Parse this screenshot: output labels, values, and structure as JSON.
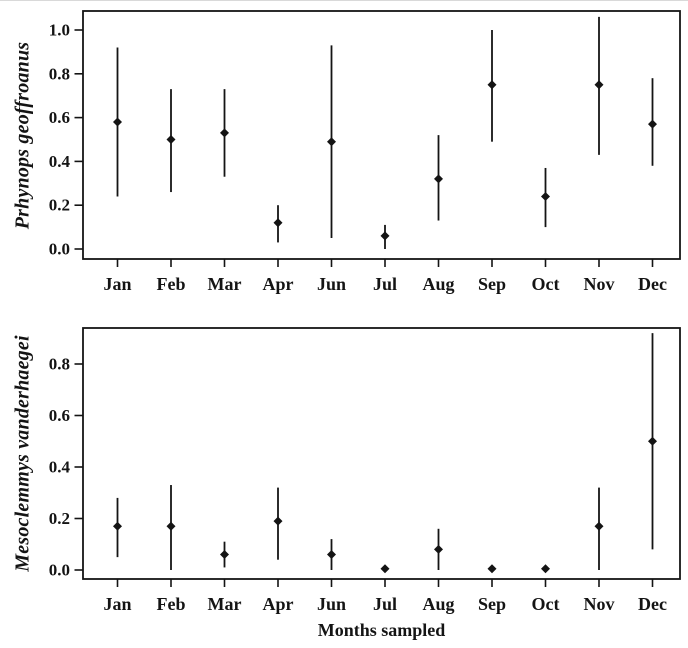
{
  "figure": {
    "background": "#ffffff",
    "ink_color": "#141414"
  },
  "chart_data": [
    {
      "type": "scatter",
      "subtype": "point-estimate-with-error-bars",
      "title": "",
      "ylabel": "Prhynops geoffroanus",
      "xlabel": "",
      "categories": [
        "Jan",
        "Feb",
        "Mar",
        "Apr",
        "Jun",
        "Jul",
        "Aug",
        "Sep",
        "Oct",
        "Nov",
        "Dec"
      ],
      "series": [
        {
          "name": "Prhynops geoffroanus",
          "values": [
            0.58,
            0.5,
            0.53,
            0.12,
            0.49,
            0.06,
            0.32,
            0.75,
            0.24,
            0.75,
            0.57
          ],
          "ci_low": [
            0.24,
            0.26,
            0.33,
            0.03,
            0.05,
            0.0,
            0.13,
            0.49,
            0.1,
            0.43,
            0.38
          ],
          "ci_high": [
            0.92,
            0.73,
            0.73,
            0.2,
            0.93,
            0.11,
            0.52,
            1.0,
            0.37,
            1.06,
            0.78
          ]
        }
      ],
      "ylim": [
        -0.05,
        1.09
      ],
      "yticks": [
        0.0,
        0.2,
        0.4,
        0.6,
        0.8,
        1.0
      ],
      "grid": false,
      "legend": "none",
      "marker": "filled-diamond"
    },
    {
      "type": "scatter",
      "subtype": "point-estimate-with-error-bars",
      "title": "",
      "ylabel": "Mesoclemmys vanderhaegei",
      "xlabel": "Months sampled",
      "categories": [
        "Jan",
        "Feb",
        "Mar",
        "Apr",
        "Jun",
        "Jul",
        "Aug",
        "Sep",
        "Oct",
        "Nov",
        "Dec"
      ],
      "series": [
        {
          "name": "Mesoclemmys vanderhaegei",
          "values": [
            0.17,
            0.17,
            0.06,
            0.19,
            0.06,
            0.005,
            0.08,
            0.005,
            0.005,
            0.17,
            0.5
          ],
          "ci_low": [
            0.05,
            0.0,
            0.01,
            0.04,
            0.0,
            0.005,
            0.0,
            0.005,
            0.005,
            0.0,
            0.08
          ],
          "ci_high": [
            0.28,
            0.33,
            0.11,
            0.32,
            0.12,
            0.005,
            0.16,
            0.005,
            0.005,
            0.32,
            0.92
          ]
        }
      ],
      "ylim": [
        -0.04,
        0.94
      ],
      "yticks": [
        0.0,
        0.2,
        0.4,
        0.6,
        0.8
      ],
      "grid": false,
      "legend": "none",
      "marker": "filled-diamond"
    }
  ]
}
